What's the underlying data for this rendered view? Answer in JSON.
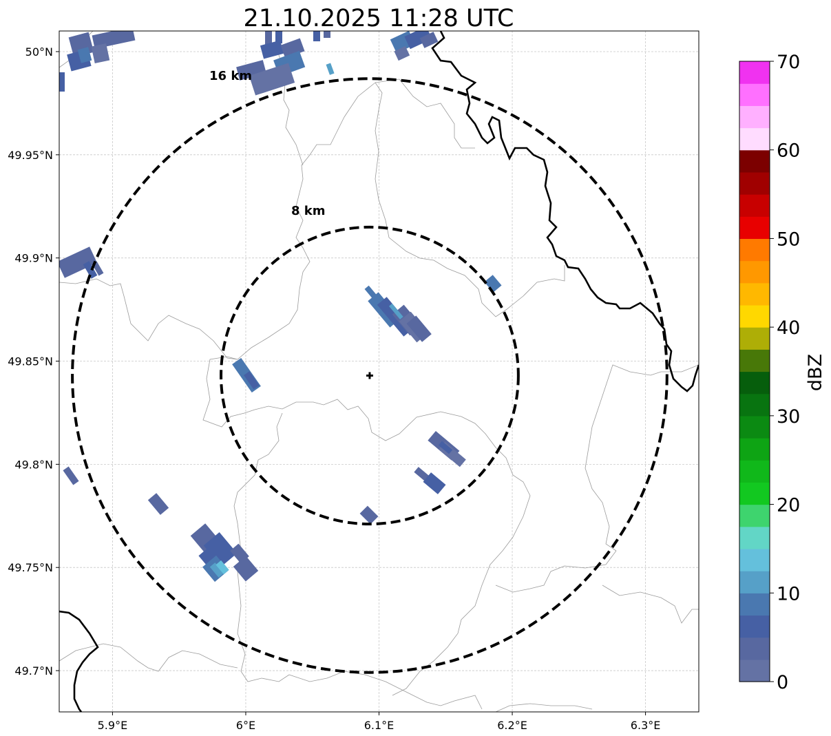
{
  "title": "21.10.2025 11:28 UTC",
  "map": {
    "x_ticks": [
      "5.9°E",
      "6°E",
      "6.1°E",
      "6.2°E",
      "6.3°E"
    ],
    "x_tick_values": [
      5.9,
      6.0,
      6.1,
      6.2,
      6.3
    ],
    "y_ticks": [
      "50°N",
      "49.95°N",
      "49.9°N",
      "49.85°N",
      "49.8°N",
      "49.75°N",
      "49.7°N"
    ],
    "y_tick_values": [
      50.0,
      49.95,
      49.9,
      49.85,
      49.8,
      49.75,
      49.7
    ],
    "lon_range": [
      5.86,
      6.34
    ],
    "lat_range": [
      49.68,
      50.01
    ],
    "grid": "on, dashed light grey",
    "radar_site": {
      "lon": 6.093,
      "lat": 49.843,
      "marker": "plus"
    },
    "range_rings": [
      {
        "label": "8 km",
        "radius_km": 8
      },
      {
        "label": "16 km",
        "radius_km": 16
      }
    ],
    "borders_color": "#000000",
    "regional_lines_color": "#9a9a9a"
  },
  "colorbar": {
    "label": "dBZ",
    "ticks": [
      "0",
      "10",
      "20",
      "30",
      "40",
      "50",
      "60",
      "70"
    ],
    "min": 0,
    "max": 70,
    "step": 2.5,
    "colors": [
      "#6472a4",
      "#5868a0",
      "#4660a4",
      "#4a78b0",
      "#56a0c8",
      "#64c0dc",
      "#62d6c6",
      "#3ed46e",
      "#12c820",
      "#10b81a",
      "#0ea414",
      "#0b8a12",
      "#087410",
      "#065e0c",
      "#487808",
      "#aeae06",
      "#ffd800",
      "#ffb800",
      "#ff9800",
      "#ff7a00",
      "#e80000",
      "#c80000",
      "#a00000",
      "#7c0000",
      "#ffdcff",
      "#ffb0ff",
      "#ff70ff",
      "#f032f0"
    ]
  }
}
